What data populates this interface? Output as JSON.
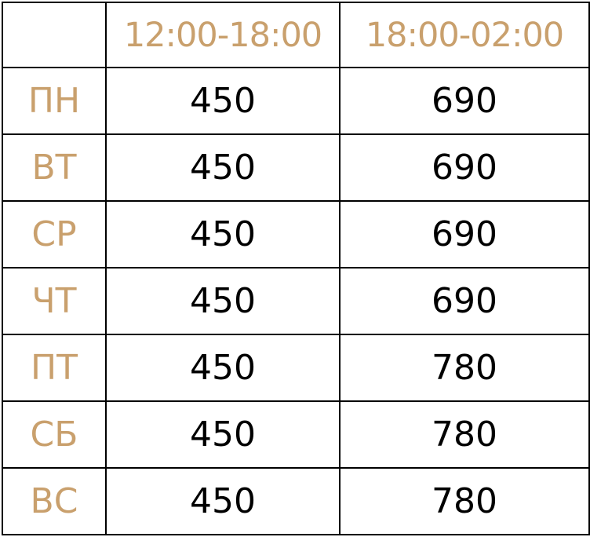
{
  "colors": {
    "accent": "#c9a06d",
    "text": "#000000",
    "border": "#000000",
    "background": "#ffffff"
  },
  "header": {
    "corner": "",
    "columns": [
      "12:00-18:00",
      "18:00-02:00"
    ]
  },
  "rows": [
    {
      "day": "ПН",
      "values": [
        "450",
        "690"
      ]
    },
    {
      "day": "ВТ",
      "values": [
        "450",
        "690"
      ]
    },
    {
      "day": "СР",
      "values": [
        "450",
        "690"
      ]
    },
    {
      "day": "ЧТ",
      "values": [
        "450",
        "690"
      ]
    },
    {
      "day": "ПТ",
      "values": [
        "450",
        "780"
      ]
    },
    {
      "day": "СБ",
      "values": [
        "450",
        "780"
      ]
    },
    {
      "day": "ВС",
      "values": [
        "450",
        "780"
      ]
    }
  ]
}
